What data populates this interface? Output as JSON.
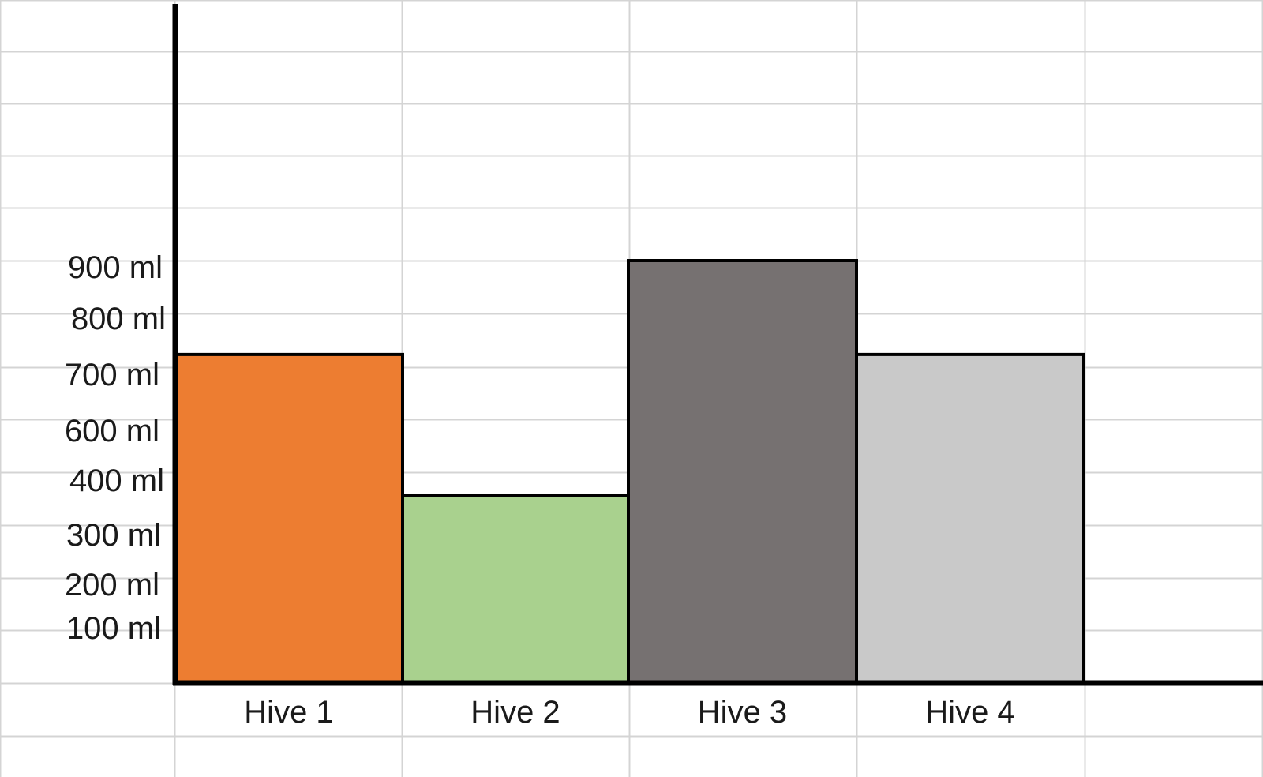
{
  "chart_data": {
    "type": "bar",
    "title": "",
    "xlabel": "",
    "ylabel": "",
    "categories": [
      "Hive 1",
      "Hive 2",
      "Hive 3",
      "Hive 4"
    ],
    "values": [
      700,
      400,
      900,
      700
    ],
    "unit": "ml",
    "bar_colors": [
      "#ED7D31",
      "#A9D18E",
      "#767171",
      "#C9C9C9"
    ],
    "bar_border_color": "#000000",
    "y_tick_labels": [
      "900 ml",
      "800 ml",
      "700 ml",
      "600 ml",
      "400 ml",
      "300 ml",
      "200 ml",
      "100 ml"
    ],
    "y_tick_values": [
      900,
      800,
      700,
      600,
      400,
      300,
      200,
      100
    ],
    "ylim": [
      0,
      900
    ],
    "grid": true,
    "grid_color": "#D4D4D4",
    "legend": "none"
  }
}
